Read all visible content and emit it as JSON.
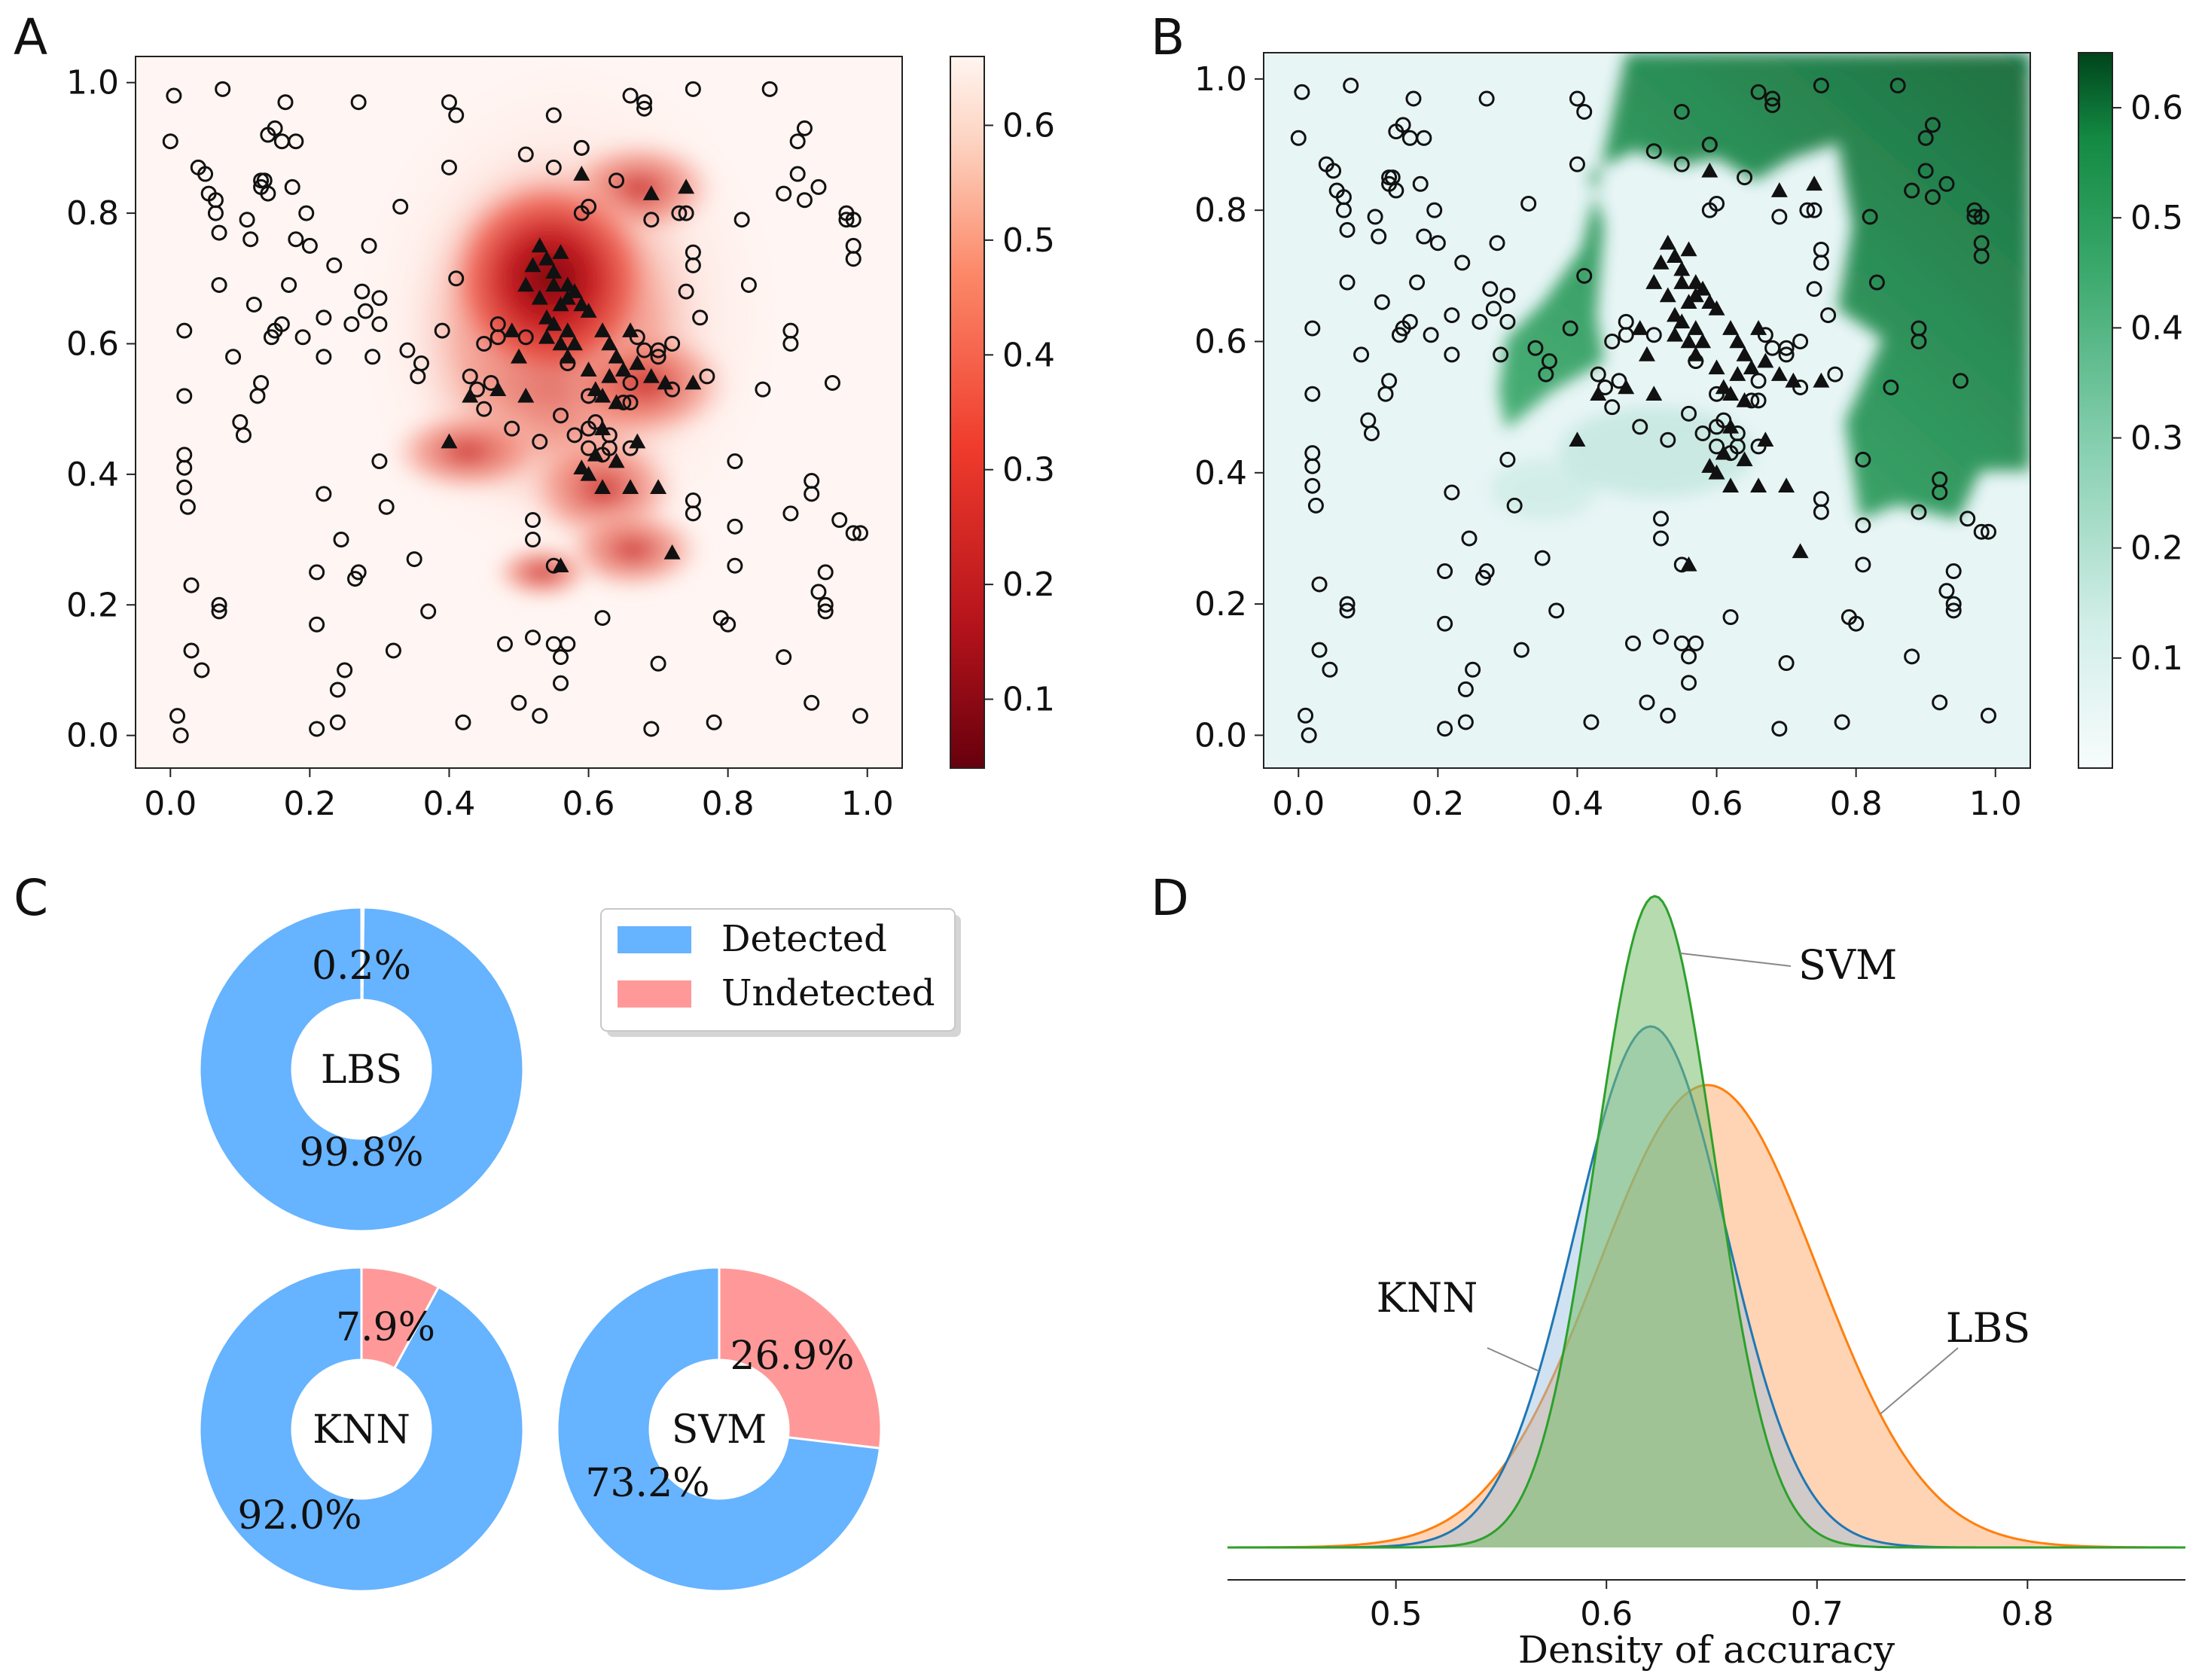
{
  "chart_data": [
    {
      "panel": "A",
      "type": "scatter",
      "title": "",
      "xlabel": "",
      "ylabel": "",
      "xlim": [
        -0.05,
        1.05
      ],
      "ylim": [
        -0.05,
        1.04
      ],
      "xticks": [
        "0.0",
        "0.2",
        "0.4",
        "0.6",
        "0.8",
        "1.0"
      ],
      "yticks": [
        "0.0",
        "0.2",
        "0.4",
        "0.6",
        "0.8",
        "1.0"
      ],
      "colorbar": {
        "colormap": "Reds_r",
        "range": [
          0.04,
          0.66
        ],
        "ticks": [
          "0.1",
          "0.2",
          "0.3",
          "0.4",
          "0.5",
          "0.6"
        ]
      },
      "background": "heatmap of accuracy, low (dark red) near the triangle cluster centered around (0.57, 0.65)"
    },
    {
      "panel": "B",
      "type": "scatter",
      "title": "",
      "xlabel": "",
      "ylabel": "",
      "xlim": [
        -0.05,
        1.05
      ],
      "ylim": [
        -0.05,
        1.04
      ],
      "xticks": [
        "0.0",
        "0.2",
        "0.4",
        "0.6",
        "0.8",
        "1.0"
      ],
      "yticks": [
        "0.0",
        "0.2",
        "0.4",
        "0.6",
        "0.8",
        "1.0"
      ],
      "colorbar": {
        "colormap": "BuGn",
        "range": [
          0.0,
          0.65
        ],
        "ticks": [
          "0.1",
          "0.2",
          "0.3",
          "0.4",
          "0.5",
          "0.6"
        ]
      },
      "background": "decision region of SVM, high (dark green) in the upper-right region"
    },
    {
      "panel": "C",
      "type": "pie",
      "legend": [
        "Detected",
        "Undetected"
      ],
      "colors": {
        "detected": "#66b3ff",
        "undetected": "#ff9999"
      },
      "donuts": [
        {
          "name": "LBS",
          "detected": 99.8,
          "undetected": 0.2,
          "detected_label": "99.8%",
          "undetected_label": "0.2%"
        },
        {
          "name": "KNN",
          "detected": 92.0,
          "undetected": 7.9,
          "detected_label": "92.0%",
          "undetected_label": "7.9%"
        },
        {
          "name": "SVM",
          "detected": 73.2,
          "undetected": 26.9,
          "detected_label": "73.2%",
          "undetected_label": "26.9%"
        }
      ]
    },
    {
      "panel": "D",
      "type": "area",
      "xlabel": "Density of accuracy",
      "xlim": [
        0.42,
        0.875
      ],
      "xticks": [
        "0.5",
        "0.6",
        "0.7",
        "0.8"
      ],
      "series": [
        {
          "name": "LBS",
          "mean": 0.648,
          "sd": 0.052,
          "peak": 0.71,
          "color": "#ff7f0e"
        },
        {
          "name": "KNN",
          "mean": 0.621,
          "sd": 0.036,
          "peak": 0.8,
          "color": "#1f77b4"
        },
        {
          "name": "SVM",
          "mean": 0.623,
          "sd": 0.028,
          "peak": 1.0,
          "color": "#2ca02c"
        }
      ]
    }
  ],
  "scatter_points": {
    "circles": [
      [
        0.0,
        0.91
      ],
      [
        0.005,
        0.98
      ],
      [
        0.01,
        0.03
      ],
      [
        0.015,
        0.0
      ],
      [
        0.02,
        0.62
      ],
      [
        0.02,
        0.43
      ],
      [
        0.02,
        0.41
      ],
      [
        0.02,
        0.38
      ],
      [
        0.02,
        0.52
      ],
      [
        0.025,
        0.35
      ],
      [
        0.03,
        0.23
      ],
      [
        0.03,
        0.13
      ],
      [
        0.045,
        0.1
      ],
      [
        0.04,
        0.87
      ],
      [
        0.05,
        0.86
      ],
      [
        0.055,
        0.83
      ],
      [
        0.065,
        0.82
      ],
      [
        0.065,
        0.8
      ],
      [
        0.07,
        0.77
      ],
      [
        0.07,
        0.69
      ],
      [
        0.07,
        0.19
      ],
      [
        0.07,
        0.2
      ],
      [
        0.075,
        0.99
      ],
      [
        0.09,
        0.58
      ],
      [
        0.1,
        0.48
      ],
      [
        0.105,
        0.46
      ],
      [
        0.11,
        0.79
      ],
      [
        0.115,
        0.76
      ],
      [
        0.12,
        0.66
      ],
      [
        0.125,
        0.52
      ],
      [
        0.13,
        0.54
      ],
      [
        0.13,
        0.85
      ],
      [
        0.135,
        0.85
      ],
      [
        0.14,
        0.83
      ],
      [
        0.14,
        0.92
      ],
      [
        0.15,
        0.93
      ],
      [
        0.145,
        0.61
      ],
      [
        0.15,
        0.62
      ],
      [
        0.16,
        0.63
      ],
      [
        0.16,
        0.91
      ],
      [
        0.165,
        0.97
      ],
      [
        0.17,
        0.69
      ],
      [
        0.175,
        0.84
      ],
      [
        0.18,
        0.91
      ],
      [
        0.19,
        0.61
      ],
      [
        0.195,
        0.8
      ],
      [
        0.2,
        0.75
      ],
      [
        0.21,
        0.01
      ],
      [
        0.21,
        0.25
      ],
      [
        0.21,
        0.17
      ],
      [
        0.22,
        0.58
      ],
      [
        0.22,
        0.37
      ],
      [
        0.22,
        0.64
      ],
      [
        0.235,
        0.72
      ],
      [
        0.24,
        0.02
      ],
      [
        0.24,
        0.07
      ],
      [
        0.245,
        0.3
      ],
      [
        0.25,
        0.1
      ],
      [
        0.26,
        0.63
      ],
      [
        0.265,
        0.24
      ],
      [
        0.27,
        0.25
      ],
      [
        0.27,
        0.97
      ],
      [
        0.275,
        0.68
      ],
      [
        0.28,
        0.65
      ],
      [
        0.285,
        0.75
      ],
      [
        0.29,
        0.58
      ],
      [
        0.3,
        0.67
      ],
      [
        0.3,
        0.63
      ],
      [
        0.3,
        0.42
      ],
      [
        0.31,
        0.35
      ],
      [
        0.32,
        0.13
      ],
      [
        0.33,
        0.81
      ],
      [
        0.34,
        0.59
      ],
      [
        0.35,
        0.27
      ],
      [
        0.355,
        0.55
      ],
      [
        0.36,
        0.57
      ],
      [
        0.37,
        0.19
      ],
      [
        0.4,
        0.87
      ],
      [
        0.4,
        0.97
      ],
      [
        0.41,
        0.95
      ],
      [
        0.41,
        0.7
      ],
      [
        0.42,
        0.02
      ],
      [
        0.43,
        0.55
      ],
      [
        0.44,
        0.53
      ],
      [
        0.45,
        0.6
      ],
      [
        0.45,
        0.5
      ],
      [
        0.46,
        0.54
      ],
      [
        0.47,
        0.61
      ],
      [
        0.48,
        0.14
      ],
      [
        0.49,
        0.47
      ],
      [
        0.5,
        0.05
      ],
      [
        0.51,
        0.89
      ],
      [
        0.51,
        0.61
      ],
      [
        0.52,
        0.33
      ],
      [
        0.52,
        0.3
      ],
      [
        0.52,
        0.15
      ],
      [
        0.53,
        0.03
      ],
      [
        0.53,
        0.45
      ],
      [
        0.55,
        0.95
      ],
      [
        0.55,
        0.87
      ],
      [
        0.55,
        0.26
      ],
      [
        0.55,
        0.14
      ],
      [
        0.56,
        0.12
      ],
      [
        0.56,
        0.08
      ],
      [
        0.56,
        0.49
      ],
      [
        0.57,
        0.14
      ],
      [
        0.57,
        0.57
      ],
      [
        0.58,
        0.46
      ],
      [
        0.59,
        0.8
      ],
      [
        0.59,
        0.9
      ],
      [
        0.59,
        0.9
      ],
      [
        0.6,
        0.52
      ],
      [
        0.6,
        0.47
      ],
      [
        0.6,
        0.44
      ],
      [
        0.61,
        0.48
      ],
      [
        0.62,
        0.43
      ],
      [
        0.62,
        0.18
      ],
      [
        0.63,
        0.46
      ],
      [
        0.63,
        0.44
      ],
      [
        0.64,
        0.85
      ],
      [
        0.65,
        0.51
      ],
      [
        0.66,
        0.54
      ],
      [
        0.66,
        0.44
      ],
      [
        0.66,
        0.51
      ],
      [
        0.67,
        0.61
      ],
      [
        0.68,
        0.97
      ],
      [
        0.68,
        0.96
      ],
      [
        0.68,
        0.59
      ],
      [
        0.69,
        0.79
      ],
      [
        0.69,
        0.01
      ],
      [
        0.7,
        0.11
      ],
      [
        0.7,
        0.58
      ],
      [
        0.7,
        0.59
      ],
      [
        0.72,
        0.6
      ],
      [
        0.72,
        0.53
      ],
      [
        0.73,
        0.8
      ],
      [
        0.74,
        0.68
      ],
      [
        0.74,
        0.8
      ],
      [
        0.75,
        0.72
      ],
      [
        0.75,
        0.99
      ],
      [
        0.75,
        0.36
      ],
      [
        0.75,
        0.34
      ],
      [
        0.75,
        0.74
      ],
      [
        0.76,
        0.64
      ],
      [
        0.77,
        0.55
      ],
      [
        0.78,
        0.02
      ],
      [
        0.79,
        0.18
      ],
      [
        0.8,
        0.17
      ],
      [
        0.81,
        0.26
      ],
      [
        0.81,
        0.32
      ],
      [
        0.81,
        0.42
      ],
      [
        0.82,
        0.79
      ],
      [
        0.83,
        0.69
      ],
      [
        0.85,
        0.53
      ],
      [
        0.86,
        0.99
      ],
      [
        0.88,
        0.12
      ],
      [
        0.88,
        0.83
      ],
      [
        0.89,
        0.34
      ],
      [
        0.89,
        0.6
      ],
      [
        0.89,
        0.62
      ],
      [
        0.9,
        0.91
      ],
      [
        0.9,
        0.86
      ],
      [
        0.91,
        0.82
      ],
      [
        0.91,
        0.93
      ],
      [
        0.92,
        0.39
      ],
      [
        0.92,
        0.37
      ],
      [
        0.92,
        0.05
      ],
      [
        0.93,
        0.84
      ],
      [
        0.93,
        0.22
      ],
      [
        0.94,
        0.2
      ],
      [
        0.94,
        0.19
      ],
      [
        0.94,
        0.25
      ],
      [
        0.95,
        0.54
      ],
      [
        0.96,
        0.33
      ],
      [
        0.97,
        0.8
      ],
      [
        0.97,
        0.79
      ],
      [
        0.98,
        0.75
      ],
      [
        0.98,
        0.73
      ],
      [
        0.98,
        0.79
      ],
      [
        0.98,
        0.31
      ],
      [
        0.99,
        0.31
      ],
      [
        0.99,
        0.03
      ],
      [
        0.13,
        0.84
      ],
      [
        0.18,
        0.76
      ],
      [
        0.6,
        0.81
      ],
      [
        0.66,
        0.98
      ],
      [
        0.47,
        0.63
      ],
      [
        0.39,
        0.62
      ]
    ],
    "triangles": [
      [
        0.53,
        0.75
      ],
      [
        0.54,
        0.73
      ],
      [
        0.55,
        0.71
      ],
      [
        0.56,
        0.74
      ],
      [
        0.57,
        0.69
      ],
      [
        0.56,
        0.66
      ],
      [
        0.57,
        0.67
      ],
      [
        0.58,
        0.68
      ],
      [
        0.59,
        0.66
      ],
      [
        0.6,
        0.65
      ],
      [
        0.55,
        0.63
      ],
      [
        0.56,
        0.6
      ],
      [
        0.57,
        0.62
      ],
      [
        0.52,
        0.72
      ],
      [
        0.51,
        0.69
      ],
      [
        0.53,
        0.67
      ],
      [
        0.54,
        0.64
      ],
      [
        0.62,
        0.62
      ],
      [
        0.63,
        0.6
      ],
      [
        0.64,
        0.58
      ],
      [
        0.65,
        0.56
      ],
      [
        0.63,
        0.55
      ],
      [
        0.61,
        0.53
      ],
      [
        0.62,
        0.52
      ],
      [
        0.64,
        0.51
      ],
      [
        0.66,
        0.62
      ],
      [
        0.67,
        0.57
      ],
      [
        0.69,
        0.55
      ],
      [
        0.71,
        0.54
      ],
      [
        0.75,
        0.54
      ],
      [
        0.62,
        0.47
      ],
      [
        0.61,
        0.43
      ],
      [
        0.6,
        0.4
      ],
      [
        0.62,
        0.38
      ],
      [
        0.64,
        0.42
      ],
      [
        0.66,
        0.38
      ],
      [
        0.59,
        0.41
      ],
      [
        0.49,
        0.62
      ],
      [
        0.5,
        0.58
      ],
      [
        0.47,
        0.53
      ],
      [
        0.43,
        0.52
      ],
      [
        0.51,
        0.52
      ],
      [
        0.4,
        0.45
      ],
      [
        0.59,
        0.86
      ],
      [
        0.69,
        0.83
      ],
      [
        0.74,
        0.84
      ],
      [
        0.72,
        0.28
      ],
      [
        0.56,
        0.26
      ],
      [
        0.6,
        0.56
      ],
      [
        0.57,
        0.58
      ],
      [
        0.67,
        0.45
      ],
      [
        0.58,
        0.6
      ],
      [
        0.55,
        0.69
      ],
      [
        0.54,
        0.61
      ],
      [
        0.7,
        0.38
      ]
    ]
  }
}
